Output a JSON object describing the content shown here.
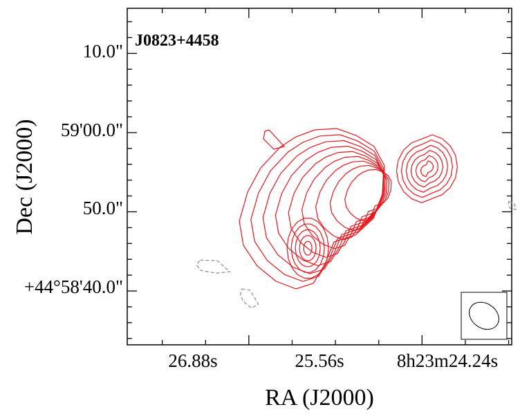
{
  "chart_data": {
    "type": "contour",
    "source_name": "J0823+4458",
    "xlabel": "RA (J2000)",
    "ylabel": "Dec (J2000)",
    "x_tick_labels": [
      "26.88s",
      "25.56s",
      "8h23m24.24s"
    ],
    "y_tick_labels": [
      "10.0\"",
      "59'00.0\"",
      "50.0\"",
      "+44°58'40.0\""
    ],
    "xlim_arcsec": [
      -9.9,
      21.4
    ],
    "ylim_arcsec": [
      -6.8,
      35.7
    ],
    "major_x_ticks_arcsec": [
      0,
      14.1,
      28.2
    ],
    "major_y_ticks_arcsec": [
      0,
      10,
      20,
      30
    ],
    "positive_contour_color": "#e8141b",
    "negative_contour_color": "#8a8a8a",
    "positive_contour_levels": 15,
    "peaks_arcsec": [
      {
        "x": 14.5,
        "y": 15.7
      },
      {
        "x": 4.8,
        "y": 5.4
      }
    ],
    "negative_blobs_arcsec": [
      {
        "x": -2.9,
        "y": 3.3
      },
      {
        "x": 0.1,
        "y": -0.6
      },
      {
        "x": 21.4,
        "y": 10.8
      }
    ],
    "beam": {
      "major_arcsec": 4.0,
      "minor_arcsec": 3.1,
      "pa_deg": 35,
      "position": "bottom-right"
    },
    "grid": false
  }
}
